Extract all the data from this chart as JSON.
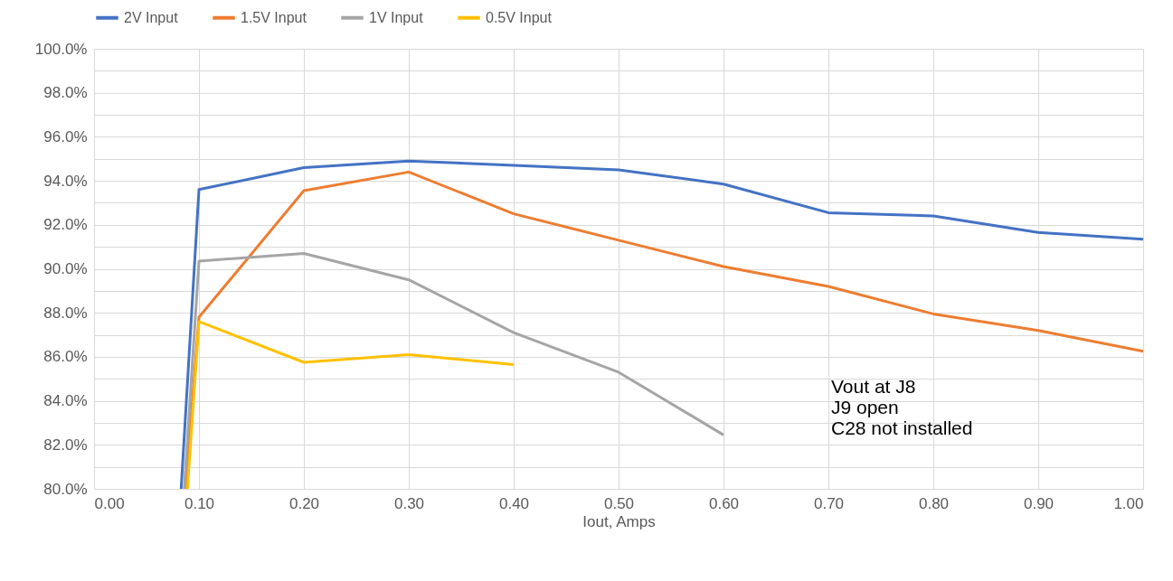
{
  "chart_data": {
    "type": "line",
    "xlabel": "Iout, Amps",
    "legend": "top",
    "grid": true,
    "line_style": "solid",
    "marker": "none",
    "xlim": [
      0,
      1
    ],
    "ylim": [
      80,
      100
    ],
    "xticks": [
      {
        "value": 0,
        "label": "0.00"
      },
      {
        "value": 0.1,
        "label": "0.10"
      },
      {
        "value": 0.2,
        "label": "0.20"
      },
      {
        "value": 0.3,
        "label": "0.30"
      },
      {
        "value": 0.4,
        "label": "0.40"
      },
      {
        "value": 0.5,
        "label": "0.50"
      },
      {
        "value": 0.6,
        "label": "0.60"
      },
      {
        "value": 0.7,
        "label": "0.70"
      },
      {
        "value": 0.8,
        "label": "0.80"
      },
      {
        "value": 0.9,
        "label": "0.90"
      },
      {
        "value": 1,
        "label": "1.00"
      }
    ],
    "yticks": [
      {
        "value": 80,
        "label": "80.0%"
      },
      {
        "value": 81,
        "label": null
      },
      {
        "value": 82,
        "label": "82.0%"
      },
      {
        "value": 83,
        "label": null
      },
      {
        "value": 84,
        "label": "84.0%"
      },
      {
        "value": 85,
        "label": null
      },
      {
        "value": 86,
        "label": "86.0%"
      },
      {
        "value": 87,
        "label": null
      },
      {
        "value": 88,
        "label": "88.0%"
      },
      {
        "value": 89,
        "label": null
      },
      {
        "value": 90,
        "label": "90.0%"
      },
      {
        "value": 91,
        "label": null
      },
      {
        "value": 92,
        "label": "92.0%"
      },
      {
        "value": 93,
        "label": null
      },
      {
        "value": 94,
        "label": "94.0%"
      },
      {
        "value": 95,
        "label": null
      },
      {
        "value": 96,
        "label": "96.0%"
      },
      {
        "value": 97,
        "label": null
      },
      {
        "value": 98,
        "label": "98.0%"
      },
      {
        "value": 99,
        "label": null
      },
      {
        "value": 100,
        "label": "100.0%"
      }
    ],
    "series": [
      {
        "name": "2V Input",
        "color": "#4472c4",
        "x": [
          0.083,
          0.1,
          0.2,
          0.3,
          0.4,
          0.5,
          0.6,
          0.7,
          0.8,
          0.9,
          1.0
        ],
        "values": [
          80,
          93.6,
          94.6,
          94.9,
          94.7,
          94.5,
          93.85,
          92.55,
          92.4,
          91.65,
          91.35
        ]
      },
      {
        "name": "1.5V Input",
        "color": "#ed7d31",
        "x": [
          0.087,
          0.1,
          0.2,
          0.3,
          0.4,
          0.5,
          0.6,
          0.7,
          0.8,
          0.9,
          1.0
        ],
        "values": [
          80,
          87.8,
          93.55,
          94.4,
          92.5,
          91.3,
          90.1,
          89.2,
          87.95,
          87.2,
          86.25
        ]
      },
      {
        "name": "1V Input",
        "color": "#a5a5a5",
        "x": [
          0.086,
          0.1,
          0.2,
          0.3,
          0.4,
          0.5,
          0.6
        ],
        "values": [
          80,
          90.35,
          90.7,
          89.5,
          87.1,
          85.3,
          82.45
        ]
      },
      {
        "name": "0.5V Input",
        "color": "#ffc000",
        "x": [
          0.089,
          0.1,
          0.2,
          0.3,
          0.4
        ],
        "values": [
          80,
          87.6,
          85.75,
          86.1,
          85.65
        ]
      }
    ],
    "annotations": [
      "Vout at J8",
      "J9 open",
      "C28 not installed"
    ]
  }
}
